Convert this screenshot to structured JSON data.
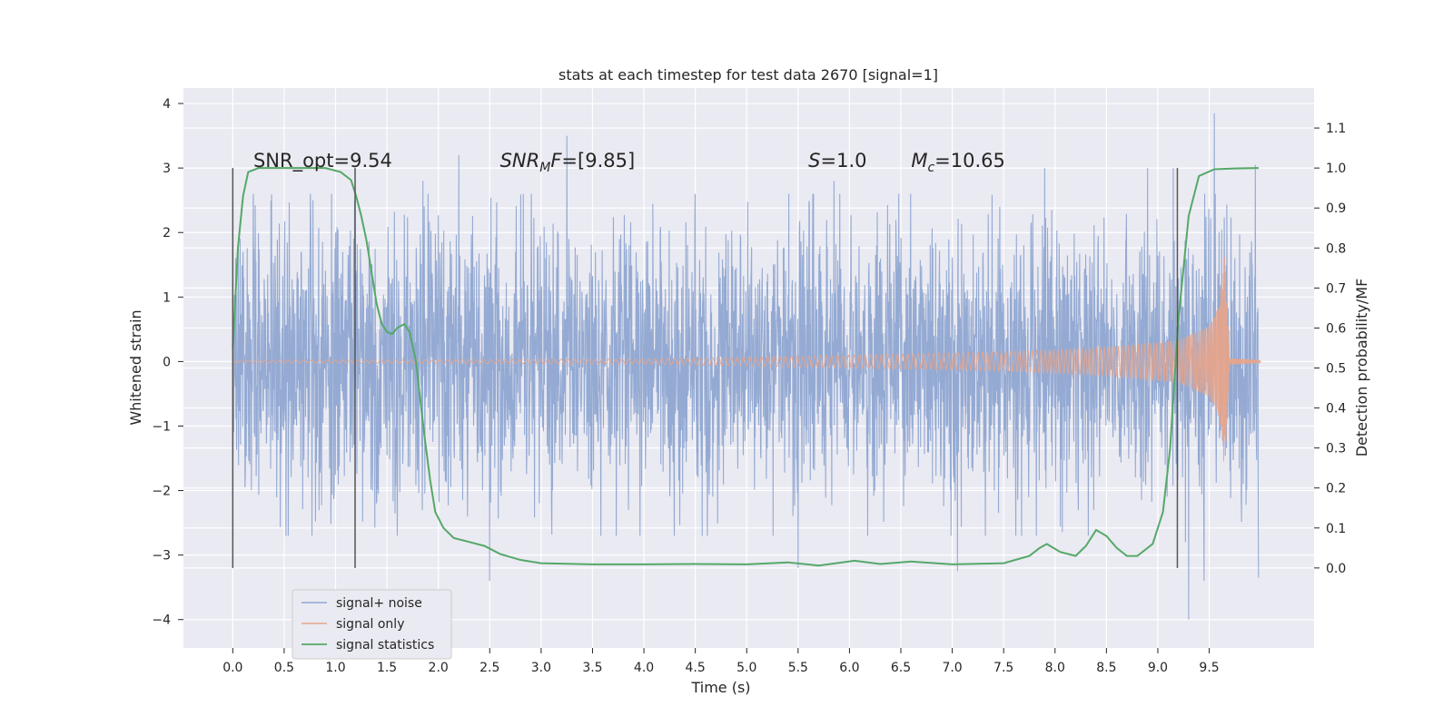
{
  "chart_data": {
    "type": "line",
    "title": "stats at each timestep for test data 2670 [signal=1]",
    "xlabel": "Time (s)",
    "ylabel_left": "Whitened strain",
    "ylabel_right": "Detection probability/MF",
    "xlim": [
      -0.48,
      10.52
    ],
    "ylim_left": [
      -4.44,
      4.24
    ],
    "ylim_right": [
      -0.2,
      1.2
    ],
    "x_ticks": [
      0.0,
      0.5,
      1.0,
      1.5,
      2.0,
      2.5,
      3.0,
      3.5,
      4.0,
      4.5,
      5.0,
      5.5,
      6.0,
      6.5,
      7.0,
      7.5,
      8.0,
      8.5,
      9.0,
      9.5
    ],
    "x_tick_labels": [
      "0.0",
      "0.5",
      "1.0",
      "1.5",
      "2.0",
      "2.5",
      "3.0",
      "3.5",
      "4.0",
      "4.5",
      "5.0",
      "5.5",
      "6.0",
      "6.5",
      "7.0",
      "7.5",
      "8.0",
      "8.5",
      "9.0",
      "9.5"
    ],
    "y_left_ticks": [
      4,
      3,
      2,
      1,
      0,
      -1,
      -2,
      -3,
      -4
    ],
    "y_left_tick_labels": [
      "4",
      "3",
      "2",
      "1",
      "0",
      "−1",
      "−2",
      "−3",
      "−4"
    ],
    "y_right_ticks": [
      1.1,
      1.0,
      0.9,
      0.8,
      0.7,
      0.6,
      0.5,
      0.4,
      0.3,
      0.2,
      0.1,
      0.0
    ],
    "y_right_tick_labels": [
      "1.1",
      "1.0",
      "0.9",
      "0.8",
      "0.7",
      "0.6",
      "0.5",
      "0.4",
      "0.3",
      "0.2",
      "0.1",
      "0.0"
    ],
    "grid": true,
    "annotations": [
      {
        "kind": "plain",
        "text": "SNR_opt=9.54",
        "x": 0.2,
        "y": 3.0
      },
      {
        "kind": "sub",
        "base": "SNR",
        "sub": "M",
        "rest": "F=[9.85]",
        "x": 2.6,
        "y": 3.0
      },
      {
        "kind": "italic",
        "base": "S",
        "rest": "=1.0",
        "x": 5.6,
        "y": 3.0
      },
      {
        "kind": "sub",
        "base": "M",
        "sub": "c",
        "rest": "=10.65",
        "x": 6.6,
        "y": 3.0
      }
    ],
    "vertical_markers": [
      {
        "x": 0.0,
        "ymin": -3.2,
        "ymax": 3.0
      },
      {
        "x": 1.19,
        "ymin": -3.2,
        "ymax": 3.0
      },
      {
        "x": 9.19,
        "ymin": -3.2,
        "ymax": 3.0
      }
    ],
    "series": [
      {
        "name": "signal+ noise",
        "color": "#8fa6d1",
        "axis": "left",
        "kind": "noise",
        "x_range": [
          0.0,
          9.98
        ],
        "typical_amplitude": 1.05,
        "peaks": [
          [
            0.1,
            1.7
          ],
          [
            1.0,
            2.0
          ],
          [
            1.85,
            2.8
          ],
          [
            2.2,
            3.2
          ],
          [
            3.25,
            3.5
          ],
          [
            4.5,
            2.6
          ],
          [
            5.85,
            2.8
          ],
          [
            7.9,
            3.0
          ],
          [
            8.9,
            3.0
          ],
          [
            9.15,
            3.0
          ],
          [
            9.27,
            -2.8
          ],
          [
            9.3,
            -4.0
          ],
          [
            9.45,
            -3.4
          ],
          [
            9.55,
            3.85
          ],
          [
            9.95,
            3.05
          ],
          [
            2.5,
            -3.4
          ],
          [
            5.5,
            -3.2
          ],
          [
            7.05,
            -3.25
          ],
          [
            9.98,
            -3.35
          ]
        ]
      },
      {
        "name": "signal only",
        "color": "#e8a48a",
        "axis": "left",
        "kind": "chirp",
        "x_range": [
          0.0,
          10.0
        ],
        "peak_time": 9.65,
        "peak_amplitude": 1.7,
        "envelope": [
          [
            0.0,
            0.02
          ],
          [
            4.0,
            0.04
          ],
          [
            6.0,
            0.1
          ],
          [
            7.5,
            0.15
          ],
          [
            8.5,
            0.22
          ],
          [
            9.2,
            0.33
          ],
          [
            9.5,
            0.55
          ],
          [
            9.6,
            0.9
          ],
          [
            9.65,
            1.7
          ],
          [
            9.7,
            0.05
          ],
          [
            10.0,
            0.02
          ]
        ]
      },
      {
        "name": "signal statistics",
        "color": "#55a868",
        "axis": "right",
        "kind": "line",
        "points": [
          [
            0.0,
            0.55
          ],
          [
            0.05,
            0.8
          ],
          [
            0.1,
            0.93
          ],
          [
            0.15,
            0.99
          ],
          [
            0.25,
            1.0
          ],
          [
            0.5,
            1.0
          ],
          [
            0.9,
            1.0
          ],
          [
            1.05,
            0.99
          ],
          [
            1.15,
            0.97
          ],
          [
            1.2,
            0.93
          ],
          [
            1.25,
            0.88
          ],
          [
            1.3,
            0.82
          ],
          [
            1.35,
            0.74
          ],
          [
            1.4,
            0.66
          ],
          [
            1.45,
            0.61
          ],
          [
            1.5,
            0.59
          ],
          [
            1.55,
            0.585
          ],
          [
            1.6,
            0.6
          ],
          [
            1.67,
            0.61
          ],
          [
            1.72,
            0.59
          ],
          [
            1.78,
            0.52
          ],
          [
            1.82,
            0.43
          ],
          [
            1.87,
            0.32
          ],
          [
            1.92,
            0.22
          ],
          [
            1.97,
            0.14
          ],
          [
            2.05,
            0.1
          ],
          [
            2.15,
            0.075
          ],
          [
            2.3,
            0.065
          ],
          [
            2.45,
            0.055
          ],
          [
            2.6,
            0.035
          ],
          [
            2.8,
            0.02
          ],
          [
            3.0,
            0.012
          ],
          [
            3.5,
            0.009
          ],
          [
            4.0,
            0.009
          ],
          [
            4.5,
            0.01
          ],
          [
            5.0,
            0.009
          ],
          [
            5.4,
            0.014
          ],
          [
            5.7,
            0.006
          ],
          [
            6.05,
            0.018
          ],
          [
            6.3,
            0.01
          ],
          [
            6.6,
            0.016
          ],
          [
            7.0,
            0.009
          ],
          [
            7.5,
            0.012
          ],
          [
            7.75,
            0.03
          ],
          [
            7.85,
            0.05
          ],
          [
            7.92,
            0.06
          ],
          [
            8.05,
            0.04
          ],
          [
            8.2,
            0.03
          ],
          [
            8.3,
            0.055
          ],
          [
            8.4,
            0.095
          ],
          [
            8.5,
            0.08
          ],
          [
            8.6,
            0.05
          ],
          [
            8.7,
            0.03
          ],
          [
            8.8,
            0.03
          ],
          [
            8.95,
            0.06
          ],
          [
            9.05,
            0.14
          ],
          [
            9.12,
            0.3
          ],
          [
            9.2,
            0.62
          ],
          [
            9.3,
            0.88
          ],
          [
            9.4,
            0.98
          ],
          [
            9.55,
            0.997
          ],
          [
            9.75,
            0.999
          ],
          [
            9.98,
            1.0
          ]
        ]
      }
    ],
    "legend": {
      "position": "lower-left",
      "entries": [
        "signal+ noise",
        "signal only",
        "signal statistics"
      ]
    }
  }
}
